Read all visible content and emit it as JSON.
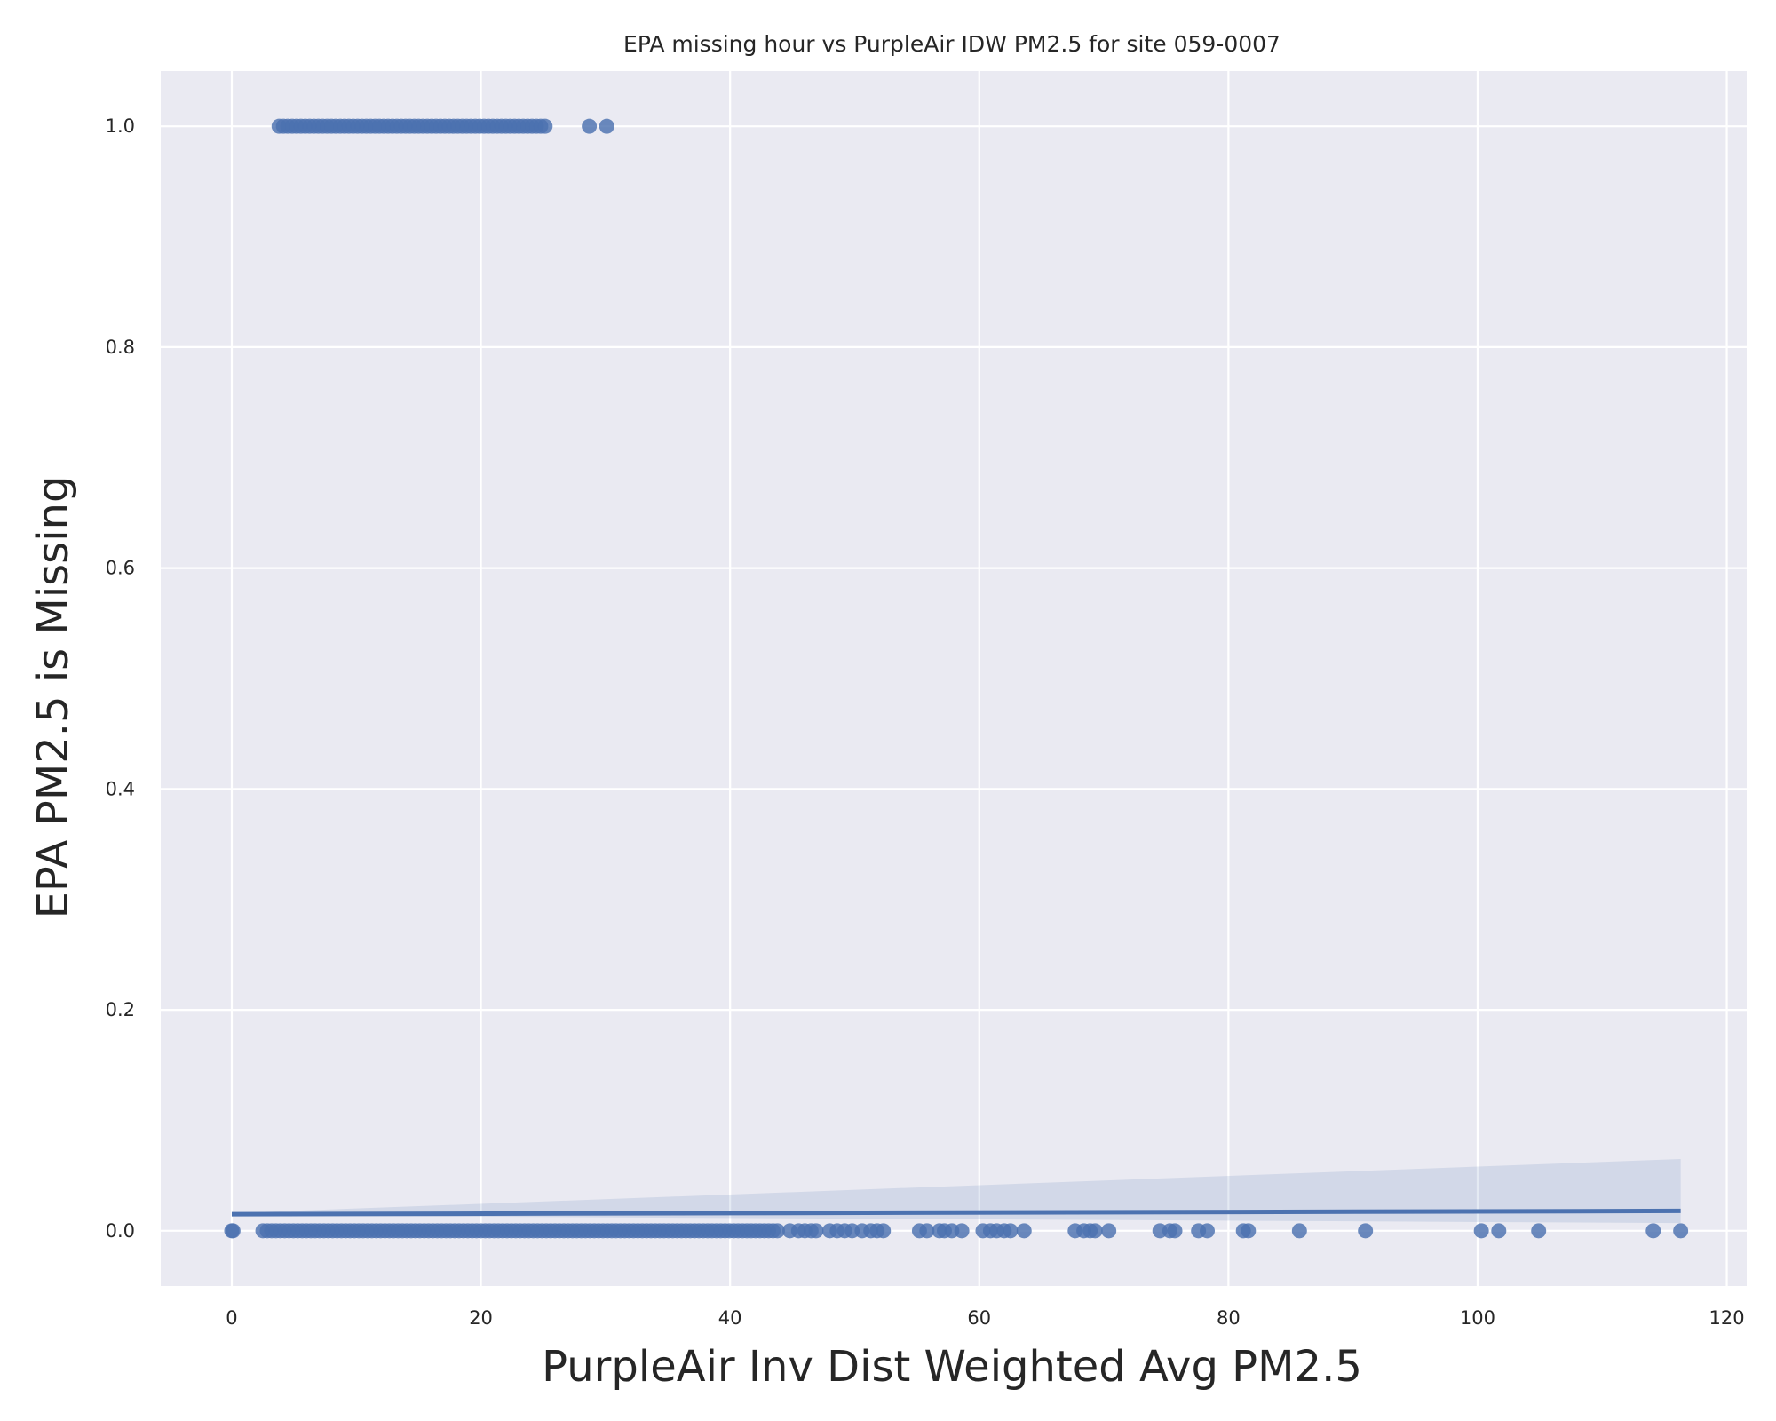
{
  "chart_data": {
    "type": "scatter",
    "title": "EPA missing hour vs PurpleAir IDW PM2.5 for site 059-0007",
    "xlabel": "PurpleAir Inv Dist Weighted Avg PM2.5",
    "ylabel": "EPA PM2.5 is Missing",
    "xlim": [
      -5.7,
      121.6
    ],
    "ylim": [
      -0.05,
      1.05
    ],
    "x_ticks": [
      0,
      20,
      40,
      60,
      80,
      100,
      120
    ],
    "y_ticks": [
      0.0,
      0.2,
      0.4,
      0.6,
      0.8,
      1.0
    ],
    "x_tick_labels": [
      "0",
      "20",
      "40",
      "60",
      "80",
      "100",
      "120"
    ],
    "y_tick_labels": [
      "0.0",
      "0.2",
      "0.4",
      "0.6",
      "0.8",
      "1.0"
    ],
    "grid": true,
    "legend": "none",
    "colors": {
      "background": "#eaeaf2",
      "grid": "#ffffff",
      "points": "#4c72b0",
      "band": "#4c72b0"
    },
    "series": [
      {
        "kind": "points",
        "y": 1,
        "x_dense_range": [
          3.8,
          25.5
        ],
        "x": [
          28.7,
          30.1
        ]
      },
      {
        "kind": "points",
        "y": 0,
        "x_dense_range": [
          2.5,
          44
        ],
        "x": [
          0,
          0.1,
          44.8,
          45.5,
          46.0,
          46.5,
          46.9,
          48.0,
          48.6,
          49.2,
          49.8,
          50.6,
          51.3,
          51.8,
          52.3,
          55.2,
          55.8,
          56.8,
          57.2,
          57.8,
          58.6,
          60.3,
          60.9,
          61.4,
          62.0,
          62.5,
          63.6,
          67.7,
          68.4,
          68.9,
          69.3,
          70.4,
          74.5,
          75.3,
          75.7,
          77.6,
          78.3,
          81.2,
          81.6,
          85.7,
          91.0,
          100.3,
          101.7,
          104.9,
          114.1,
          116.3
        ]
      }
    ],
    "regression": {
      "x_range": [
        0,
        116.3
      ],
      "y_start": 0.015,
      "y_end": 0.018,
      "ci_upper_end": 0.065,
      "ci_lower_end": 0.007
    }
  }
}
